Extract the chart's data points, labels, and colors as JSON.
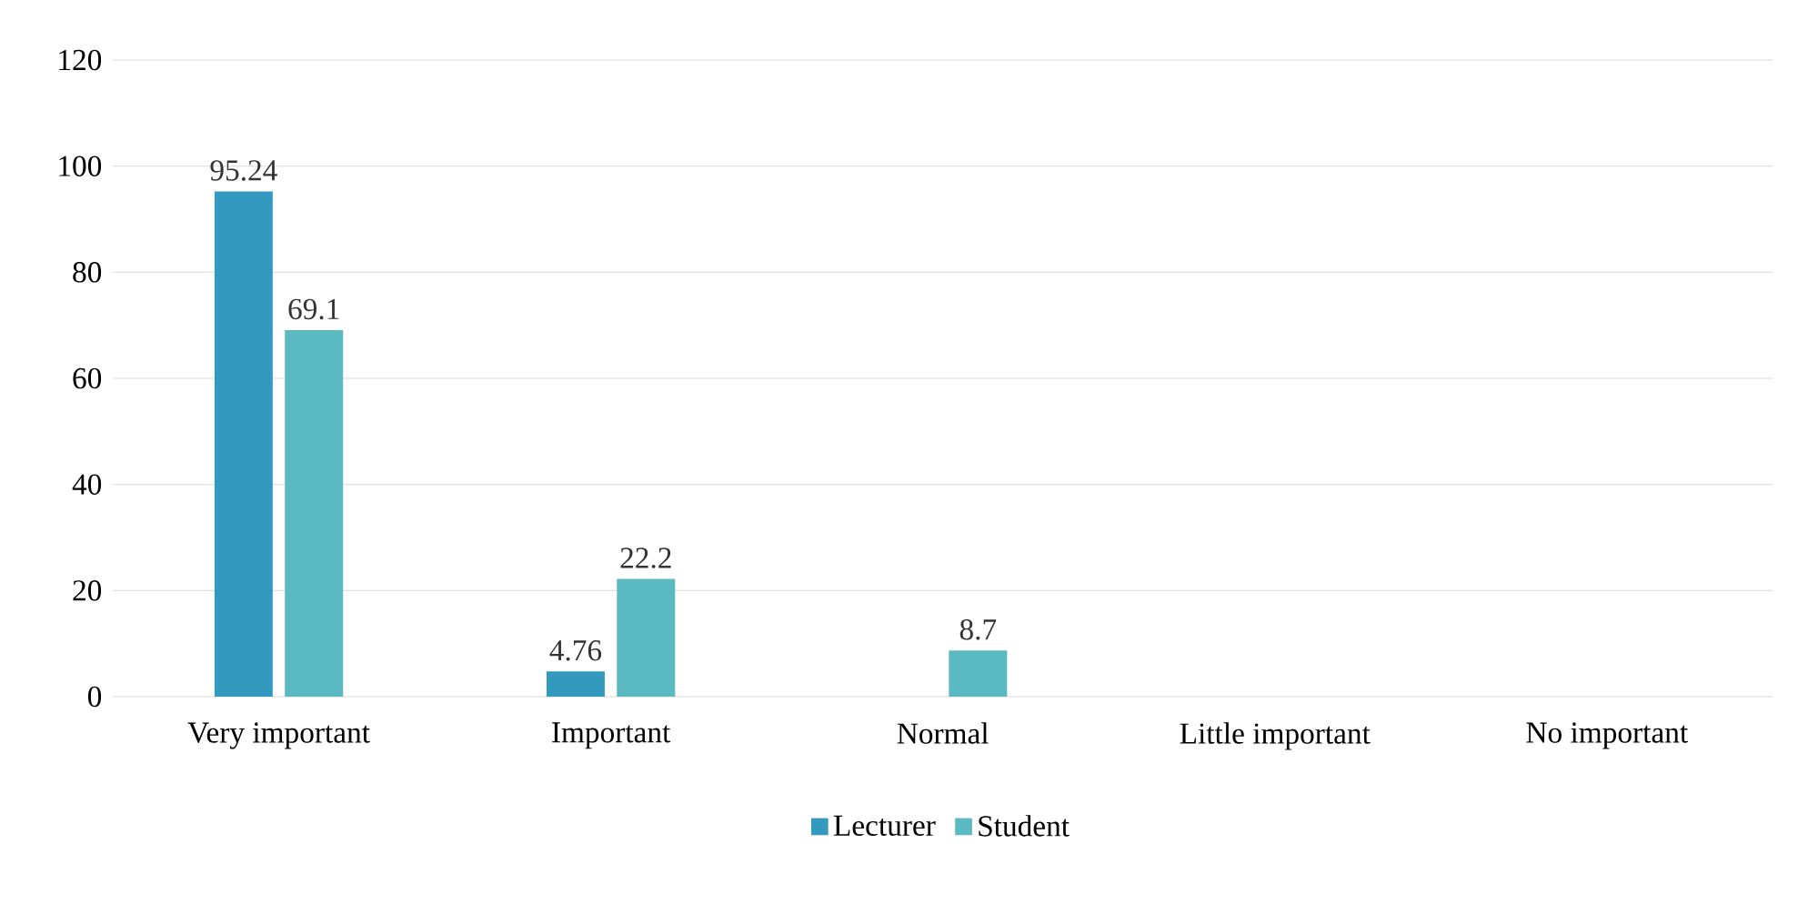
{
  "chart_data": {
    "type": "bar",
    "categories": [
      "Very important",
      "Important",
      "Normal",
      "Little important",
      "No important"
    ],
    "series": [
      {
        "name": "Lecturer",
        "color": "#3399bf",
        "values": [
          95.24,
          4.76,
          null,
          null,
          null
        ]
      },
      {
        "name": "Student",
        "color": "#5bb9c1",
        "values": [
          69.1,
          22.2,
          8.7,
          null,
          null
        ]
      }
    ],
    "ylim": [
      0,
      120
    ],
    "yticks": [
      0,
      20,
      40,
      60,
      80,
      100,
      120
    ],
    "grid": "y",
    "legend": "bottom",
    "data_labels": true
  }
}
